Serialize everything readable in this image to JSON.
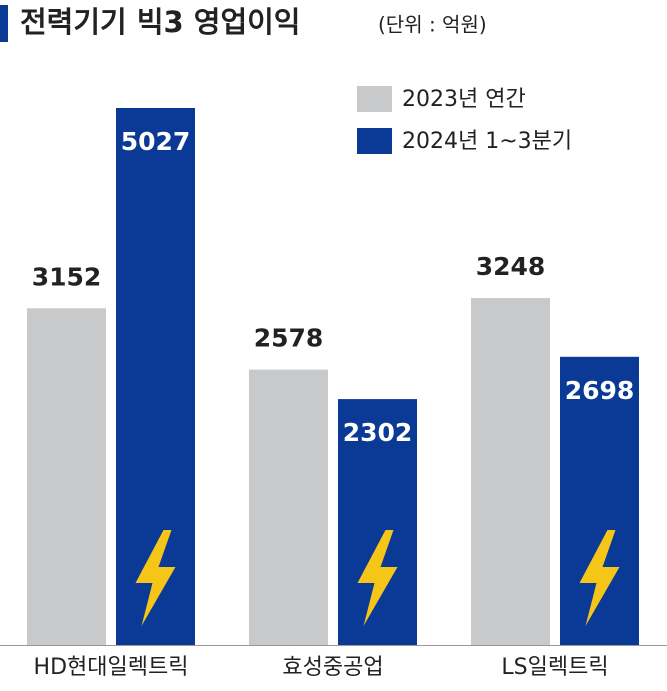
{
  "chart_data": {
    "type": "bar",
    "title": "전력기기 빅3 영업이익",
    "subtitle": "(단위 : 억원)",
    "categories": [
      "HD현대일렉트릭",
      "효성중공업",
      "LS일렉트릭"
    ],
    "series": [
      {
        "name": "2023년 연간",
        "color": "#c8c9cb",
        "values": [
          3152,
          2578,
          3248
        ]
      },
      {
        "name": "2024년 1~3분기",
        "color": "#0b3a96",
        "values": [
          5027,
          2302,
          2698
        ]
      }
    ]
  }
}
